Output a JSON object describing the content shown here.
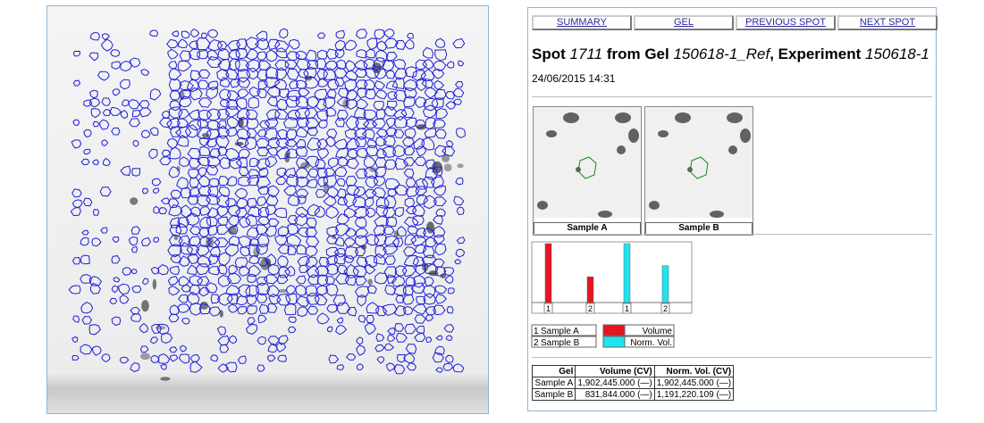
{
  "nav": [
    "SUMMARY",
    "GEL",
    "PREVIOUS SPOT",
    "NEXT SPOT"
  ],
  "title": {
    "prefix": "Spot",
    "spot": "1711",
    "mid": "from Gel",
    "gel": "150618-1_Ref",
    "sep": ", Experiment",
    "experiment": "150618-1"
  },
  "date": "24/06/2015 14:31",
  "thumbnails": [
    {
      "label": "Sample A"
    },
    {
      "label": "Sample B"
    }
  ],
  "bar_chart": {
    "categories": [
      "1",
      "2"
    ],
    "series": [
      {
        "name": "Volume",
        "color": "#e8141e",
        "values": [
          1902445,
          831844
        ]
      },
      {
        "name": "Norm. Vol.",
        "color": "#1ee4f0",
        "values": [
          1902445,
          1191220.109
        ]
      }
    ],
    "samples": [
      {
        "index": "1",
        "name": "Sample A"
      },
      {
        "index": "2",
        "name": "Sample B"
      }
    ]
  },
  "table": {
    "header": [
      "Gel",
      "Volume (CV)",
      "Norm. Vol. (CV)"
    ],
    "rows": [
      [
        "Sample A",
        "1,902,445.000 (—)",
        "1,902,445.000 (—)"
      ],
      [
        "Sample B",
        "831,844.000 (—)",
        "1,191,220.109 (—)"
      ]
    ]
  }
}
